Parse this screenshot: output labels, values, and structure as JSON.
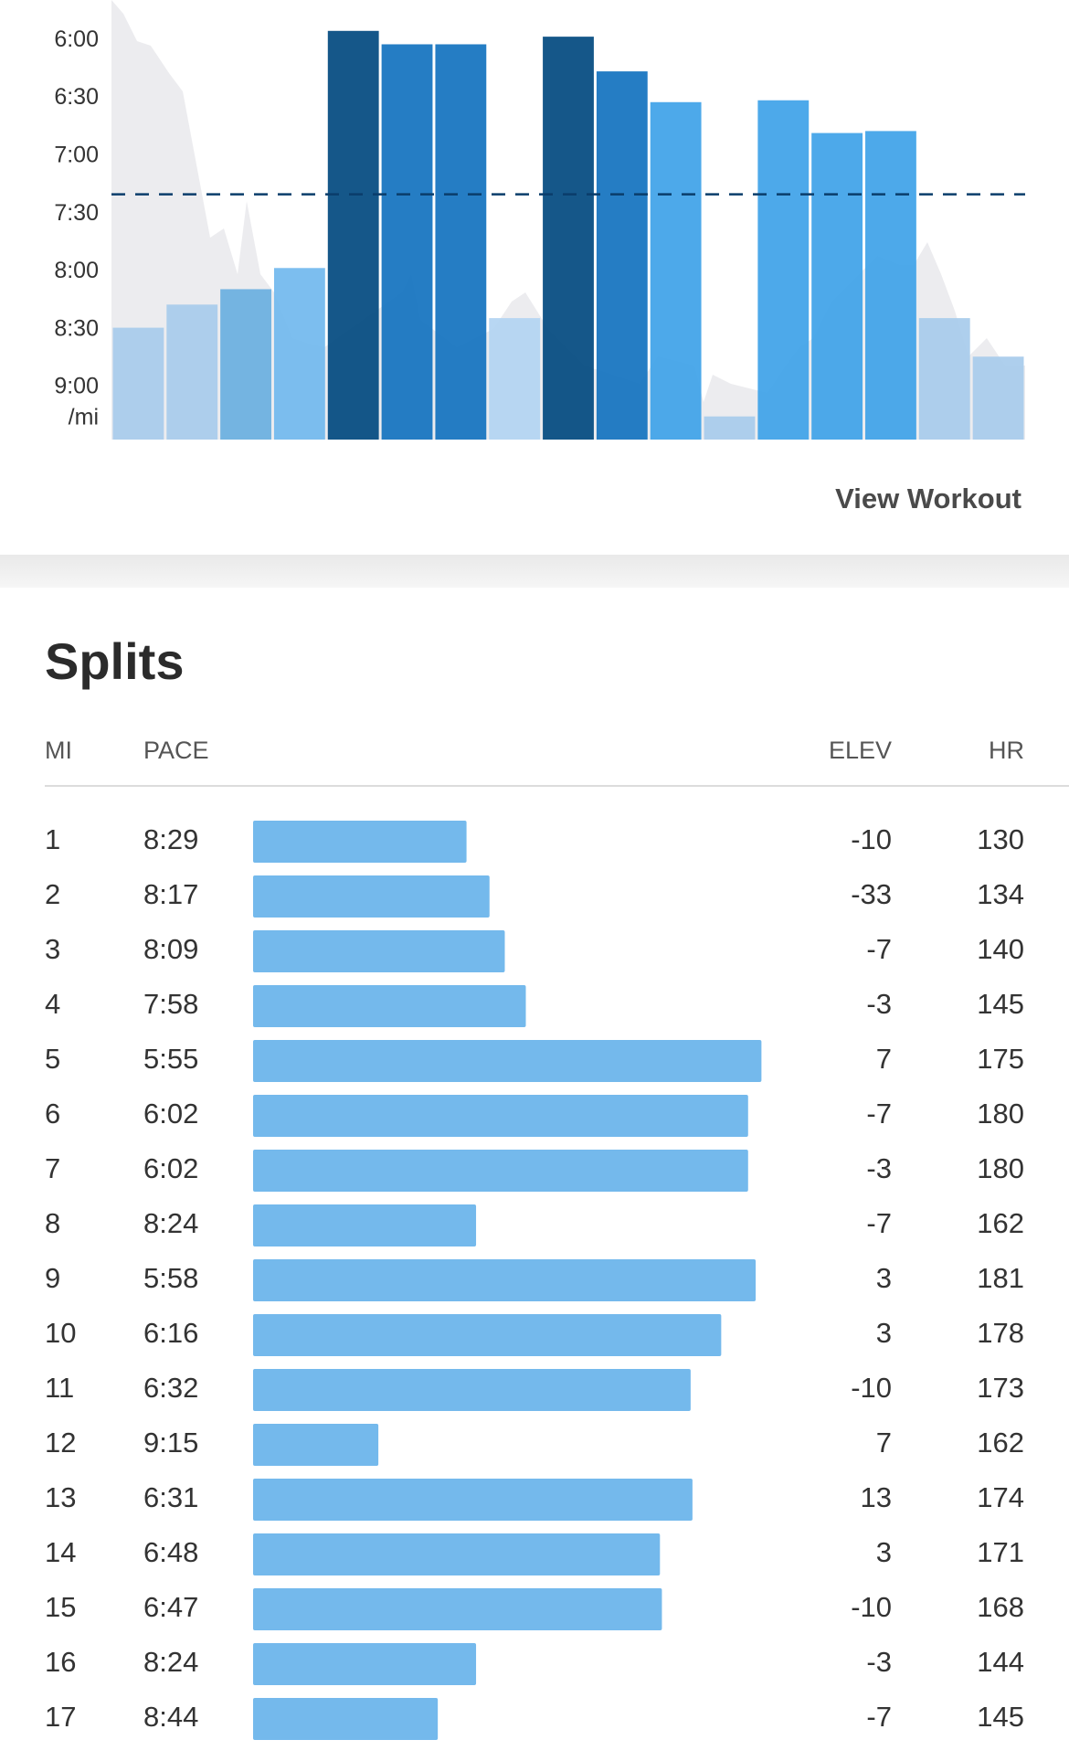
{
  "chart_data": {
    "type": "bar",
    "categories": [
      "1",
      "2",
      "3",
      "4",
      "5",
      "6",
      "7",
      "8",
      "9",
      "10",
      "11",
      "12",
      "13",
      "14",
      "15",
      "16",
      "17"
    ],
    "values": [
      8.483,
      8.283,
      8.15,
      7.967,
      5.917,
      6.033,
      6.033,
      8.4,
      5.967,
      6.267,
      6.533,
      9.25,
      6.517,
      6.8,
      6.783,
      8.4,
      8.733
    ],
    "value_labels": [
      "8:29",
      "8:17",
      "8:09",
      "7:58",
      "5:55",
      "6:02",
      "6:02",
      "8:24",
      "5:58",
      "6:16",
      "6:32",
      "9:15",
      "6:31",
      "6:48",
      "6:47",
      "8:24",
      "8:44"
    ],
    "colors": [
      "#a8cbec",
      "#a8cbec",
      "#6aafe0",
      "#72b9ee",
      "#034a80",
      "#1473bf",
      "#1473bf",
      "#b3d4f2",
      "#034a80",
      "#1473bf",
      "#3fa2e8",
      "#a8cbec",
      "#3fa2e8",
      "#3fa2e8",
      "#3fa2e8",
      "#a8cbec",
      "#a8cbec"
    ],
    "ylim": [
      5.65,
      9.45
    ],
    "inverted": true,
    "yticks": [
      {
        "value": 6,
        "label": "6:00"
      },
      {
        "value": 6.5,
        "label": "6:30"
      },
      {
        "value": 7,
        "label": "7:00"
      },
      {
        "value": 7.5,
        "label": "7:30"
      },
      {
        "value": 8,
        "label": "8:00"
      },
      {
        "value": 8.5,
        "label": "8:30"
      },
      {
        "value": 9,
        "label": "9:00"
      }
    ],
    "y_unit": "/mi",
    "reference_line": 7.33,
    "link": "View Workout"
  },
  "splits": {
    "title": "Splits",
    "headers": [
      "MI",
      "PACE",
      "ELEV",
      "HR"
    ],
    "bar_color": "#74b9ec",
    "bar_scale": [
      10.34,
      5.92
    ],
    "elev": [
      -10,
      -33,
      -7,
      -3,
      7,
      -7,
      -3,
      -7,
      3,
      3,
      -10,
      7,
      13,
      3,
      -10,
      -3,
      -7
    ],
    "hr": [
      130,
      134,
      140,
      145,
      175,
      180,
      180,
      162,
      181,
      178,
      173,
      162,
      174,
      171,
      168,
      144,
      145
    ]
  }
}
